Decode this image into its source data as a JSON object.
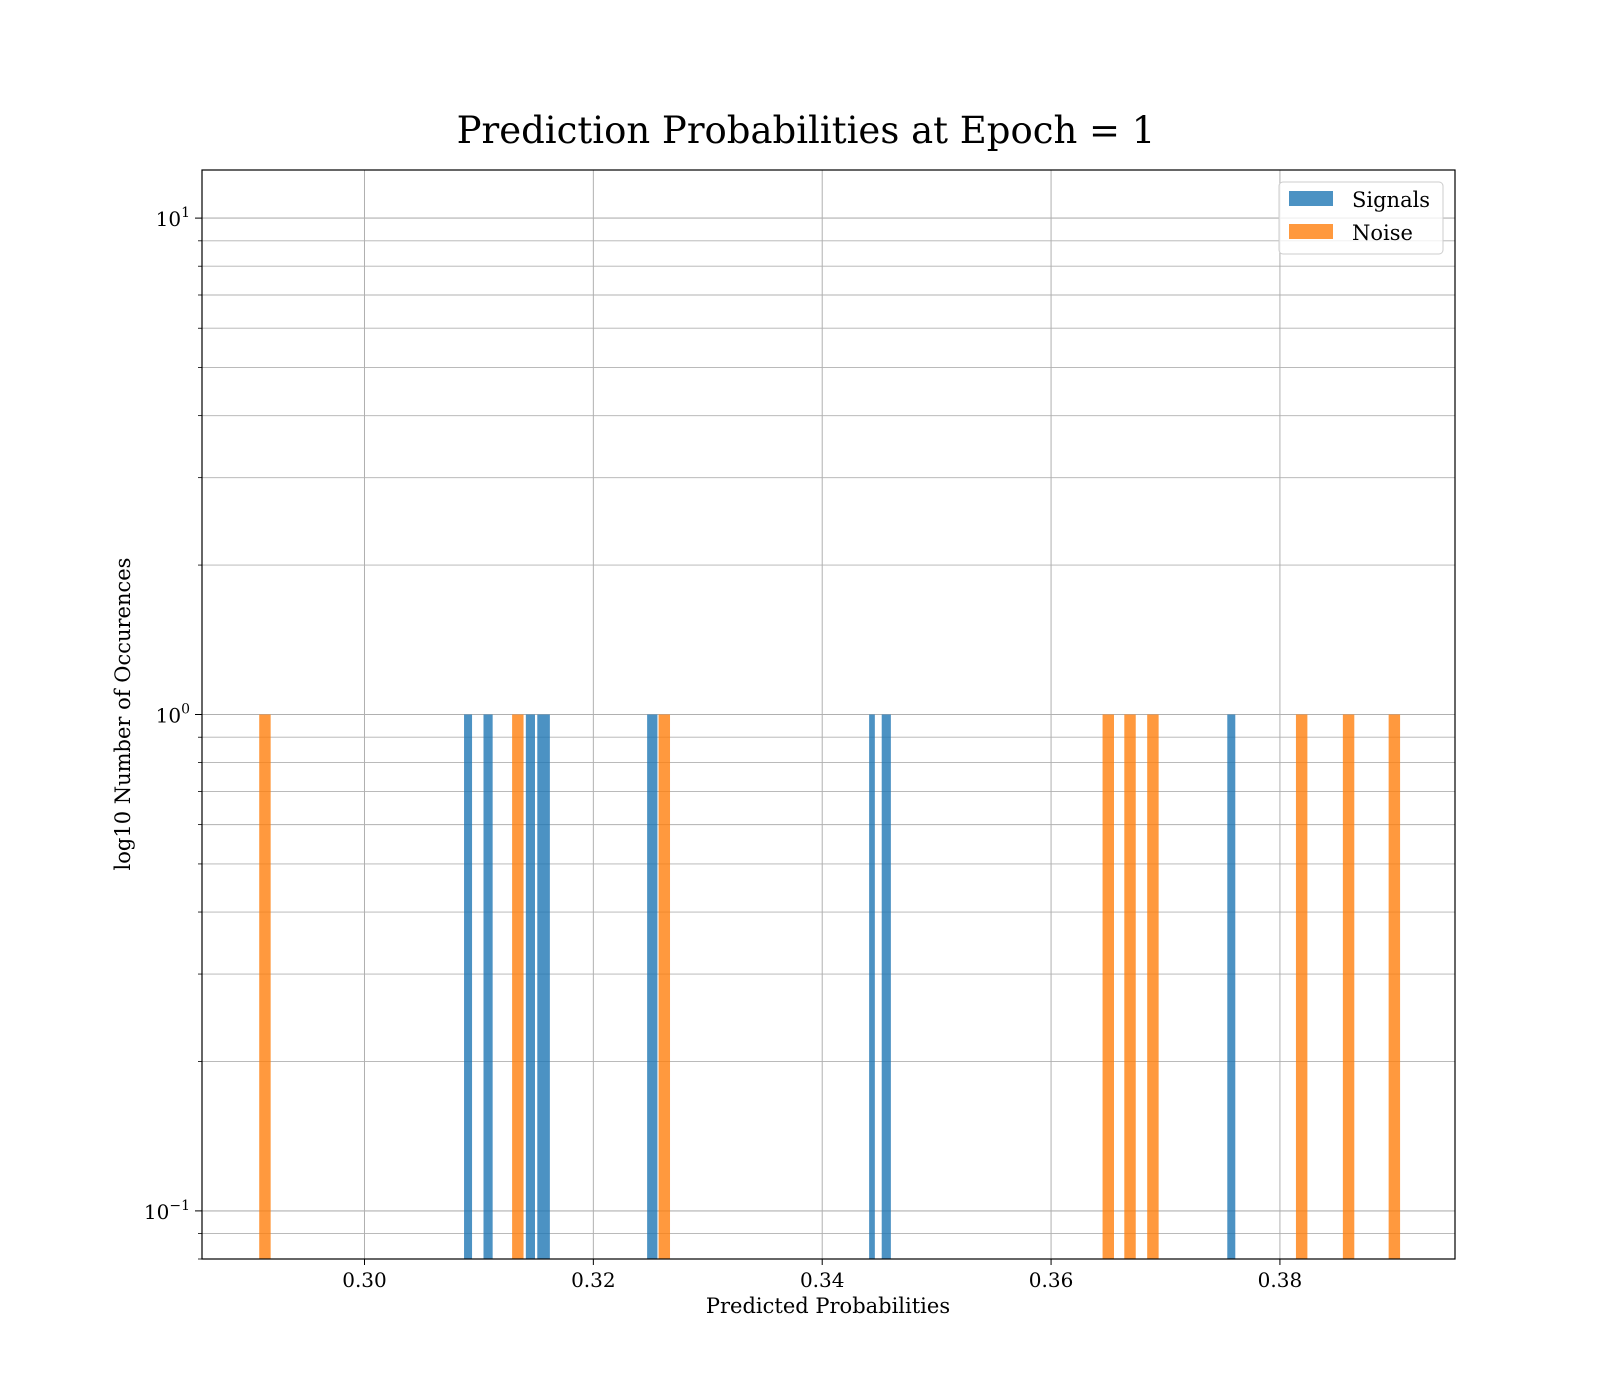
{
  "chart_data": {
    "type": "bar",
    "title": "Prediction Probabilities at Epoch = 1",
    "xlabel": "Predicted Probabilities",
    "ylabel": "log10 Number of Occurences",
    "xlim": [
      0.2858,
      0.3953
    ],
    "ylim": [
      0.08,
      12.5
    ],
    "yscale": "log",
    "grid": true,
    "legend_position": "top-right",
    "x_ticks": [
      {
        "value": 0.3,
        "label": "0.30"
      },
      {
        "value": 0.32,
        "label": "0.32"
      },
      {
        "value": 0.34,
        "label": "0.34"
      },
      {
        "value": 0.36,
        "label": "0.36"
      },
      {
        "value": 0.38,
        "label": "0.38"
      }
    ],
    "y_ticks": [
      {
        "value": 0.1,
        "base": "10",
        "exp": "−1"
      },
      {
        "value": 1,
        "base": "10",
        "exp": "0"
      },
      {
        "value": 10,
        "base": "10",
        "exp": "1"
      }
    ],
    "series": [
      {
        "name": "Signals",
        "color": "#1f77b4",
        "bars": [
          {
            "x0": 0.3087,
            "x1": 0.3094,
            "count": 1
          },
          {
            "x0": 0.3104,
            "x1": 0.3112,
            "count": 1
          },
          {
            "x0": 0.3141,
            "x1": 0.3149,
            "count": 1
          },
          {
            "x0": 0.3151,
            "x1": 0.3162,
            "count": 1
          },
          {
            "x0": 0.3247,
            "x1": 0.3256,
            "count": 1
          },
          {
            "x0": 0.3441,
            "x1": 0.3446,
            "count": 1
          },
          {
            "x0": 0.3452,
            "x1": 0.346,
            "count": 1
          },
          {
            "x0": 0.3754,
            "x1": 0.3761,
            "count": 1
          }
        ]
      },
      {
        "name": "Noise",
        "color": "#ff7f0e",
        "bars": [
          {
            "x0": 0.2908,
            "x1": 0.2918,
            "count": 1
          },
          {
            "x0": 0.3129,
            "x1": 0.3139,
            "count": 1
          },
          {
            "x0": 0.3257,
            "x1": 0.3267,
            "count": 1
          },
          {
            "x0": 0.3645,
            "x1": 0.3655,
            "count": 1
          },
          {
            "x0": 0.3664,
            "x1": 0.3674,
            "count": 1
          },
          {
            "x0": 0.3684,
            "x1": 0.3694,
            "count": 1
          },
          {
            "x0": 0.3814,
            "x1": 0.3824,
            "count": 1
          },
          {
            "x0": 0.3855,
            "x1": 0.3865,
            "count": 1
          },
          {
            "x0": 0.3895,
            "x1": 0.3905,
            "count": 1
          }
        ]
      }
    ]
  }
}
